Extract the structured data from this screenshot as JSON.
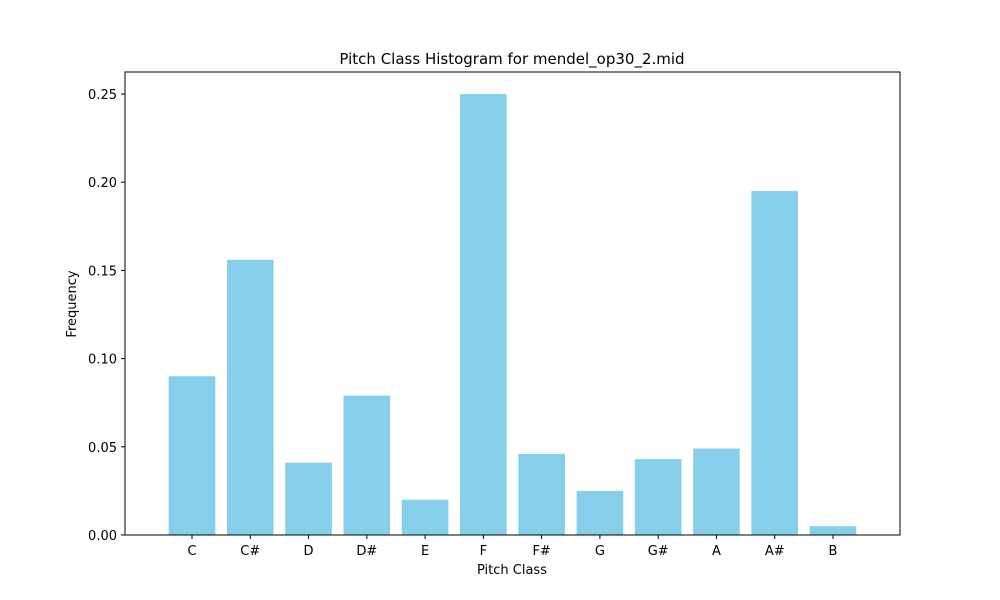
{
  "chart_data": {
    "type": "bar",
    "title": "Pitch Class Histogram for mendel_op30_2.mid",
    "xlabel": "Pitch Class",
    "ylabel": "Frequency",
    "categories": [
      "C",
      "C#",
      "D",
      "D#",
      "E",
      "F",
      "F#",
      "G",
      "G#",
      "A",
      "A#",
      "B"
    ],
    "values": [
      0.09,
      0.156,
      0.041,
      0.079,
      0.02,
      0.25,
      0.046,
      0.025,
      0.043,
      0.049,
      0.195,
      0.005
    ],
    "ylim": [
      0,
      0.2625
    ],
    "yticks": [
      0.0,
      0.05,
      0.1,
      0.15,
      0.2,
      0.25
    ],
    "ytick_labels": [
      "0.00",
      "0.05",
      "0.10",
      "0.15",
      "0.20",
      "0.25"
    ],
    "grid": false,
    "bar_color": "#87CEEB"
  }
}
